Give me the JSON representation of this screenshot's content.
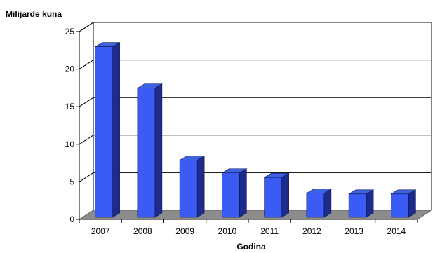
{
  "chart_data": {
    "type": "bar",
    "style": "3d-column",
    "ylabel": "Milijarde kuna",
    "xlabel": "Godina",
    "categories": [
      "2007",
      "2008",
      "2009",
      "2010",
      "2011",
      "2012",
      "2013",
      "2014"
    ],
    "values": [
      22.7,
      17.2,
      7.6,
      5.9,
      5.3,
      3.2,
      3.1,
      3.1
    ],
    "ylim": [
      0,
      25
    ],
    "yticks": [
      0,
      5,
      10,
      15,
      20,
      25
    ],
    "grid": true,
    "legend": "none",
    "colors": {
      "bar_front": "#3a5cf5",
      "bar_side": "#1c2b8c",
      "bar_top": "#3f63e0",
      "floor": "#8c8c8c",
      "gridline": "#000000"
    }
  }
}
